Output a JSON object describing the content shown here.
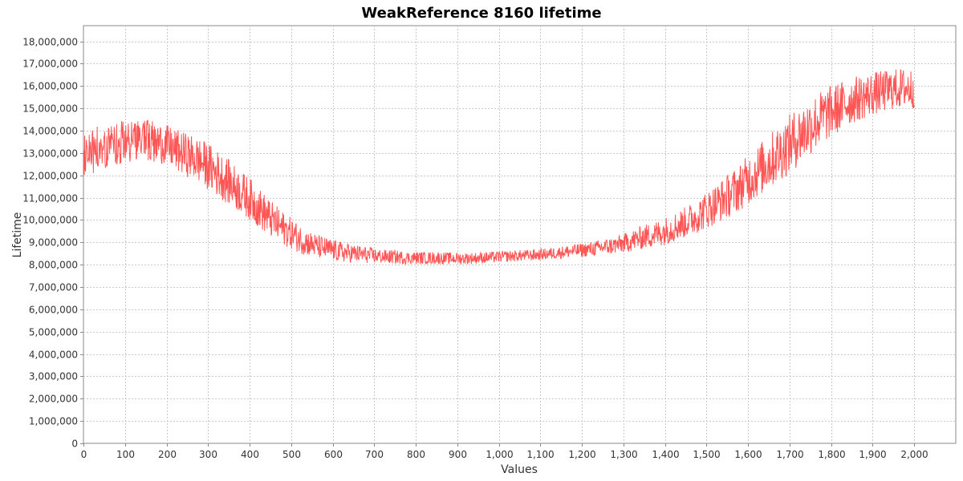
{
  "chart_data": {
    "type": "line",
    "title": "WeakReference 8160 lifetime",
    "xlabel": "Values",
    "ylabel": "Lifetime",
    "xlim": [
      0,
      2100
    ],
    "ylim": [
      0,
      18700000
    ],
    "x_ticks": [
      0,
      100,
      200,
      300,
      400,
      500,
      600,
      700,
      800,
      900,
      1000,
      1100,
      1200,
      1300,
      1400,
      1500,
      1600,
      1700,
      1800,
      1900,
      2000
    ],
    "x_tick_labels": [
      "0",
      "100",
      "200",
      "300",
      "400",
      "500",
      "600",
      "700",
      "800",
      "900",
      "1,000",
      "1,100",
      "1,200",
      "1,300",
      "1,400",
      "1,500",
      "1,600",
      "1,700",
      "1,800",
      "1,900",
      "2,000"
    ],
    "y_ticks": [
      0,
      1000000,
      2000000,
      3000000,
      4000000,
      5000000,
      6000000,
      7000000,
      8000000,
      9000000,
      10000000,
      11000000,
      12000000,
      13000000,
      14000000,
      15000000,
      16000000,
      17000000,
      18000000
    ],
    "y_tick_labels": [
      "0",
      "1,000,000",
      "2,000,000",
      "3,000,000",
      "4,000,000",
      "5,000,000",
      "6,000,000",
      "7,000,000",
      "8,000,000",
      "9,000,000",
      "10,000,000",
      "11,000,000",
      "12,000,000",
      "13,000,000",
      "14,000,000",
      "15,000,000",
      "16,000,000",
      "17,000,000",
      "18,000,000"
    ],
    "grid": true,
    "legend": "none",
    "series": [
      {
        "color": "#ff5555",
        "x": [
          0,
          25,
          50,
          75,
          100,
          125,
          150,
          175,
          200,
          225,
          250,
          275,
          300,
          325,
          350,
          375,
          400,
          425,
          450,
          475,
          500,
          525,
          550,
          575,
          600,
          625,
          650,
          675,
          700,
          725,
          750,
          775,
          800,
          825,
          850,
          875,
          900,
          925,
          950,
          975,
          1000,
          1025,
          1050,
          1075,
          1100,
          1125,
          1150,
          1175,
          1200,
          1225,
          1250,
          1275,
          1300,
          1325,
          1350,
          1375,
          1400,
          1425,
          1450,
          1475,
          1500,
          1525,
          1550,
          1575,
          1600,
          1625,
          1650,
          1675,
          1700,
          1725,
          1750,
          1775,
          1800,
          1825,
          1850,
          1875,
          1900,
          1925,
          1950,
          1975,
          2000
        ],
        "y": [
          12800000,
          13100000,
          13300000,
          13400000,
          13500000,
          13550000,
          13600000,
          13500000,
          13350000,
          13100000,
          12900000,
          12700000,
          12400000,
          12050000,
          11700000,
          11300000,
          10950000,
          10500000,
          10050000,
          9700000,
          9400000,
          9100000,
          8900000,
          8750000,
          8650000,
          8550000,
          8500000,
          8450000,
          8400000,
          8350000,
          8350000,
          8300000,
          8300000,
          8300000,
          8300000,
          8280000,
          8280000,
          8280000,
          8300000,
          8320000,
          8350000,
          8380000,
          8400000,
          8420000,
          8450000,
          8500000,
          8550000,
          8600000,
          8650000,
          8700000,
          8780000,
          8850000,
          8950000,
          9100000,
          9250000,
          9350000,
          9500000,
          9700000,
          9900000,
          10150000,
          10450000,
          10750000,
          11050000,
          11400000,
          11800000,
          12200000,
          12600000,
          13000000,
          13400000,
          13800000,
          14200000,
          14550000,
          14850000,
          15100000,
          15350000,
          15500000,
          15650000,
          15750000,
          15850000,
          15900000,
          15900000
        ],
        "spread": [
          1400000,
          1450000,
          1450000,
          1400000,
          1400000,
          1350000,
          1300000,
          1300000,
          1300000,
          1350000,
          1400000,
          1450000,
          1500000,
          1500000,
          1450000,
          1400000,
          1350000,
          1300000,
          1200000,
          1100000,
          1000000,
          900000,
          800000,
          750000,
          700000,
          650000,
          600000,
          550000,
          500000,
          450000,
          450000,
          400000,
          400000,
          400000,
          400000,
          380000,
          380000,
          370000,
          370000,
          370000,
          370000,
          360000,
          360000,
          360000,
          360000,
          380000,
          400000,
          420000,
          450000,
          480000,
          520000,
          560000,
          620000,
          700000,
          780000,
          850000,
          900000,
          950000,
          1000000,
          1100000,
          1200000,
          1300000,
          1400000,
          1500000,
          1600000,
          1700000,
          1800000,
          1850000,
          1900000,
          1900000,
          1850000,
          1800000,
          1700000,
          1600000,
          1500000,
          1450000,
          1400000,
          1350000,
          1300000,
          1300000,
          1300000
        ]
      }
    ]
  }
}
